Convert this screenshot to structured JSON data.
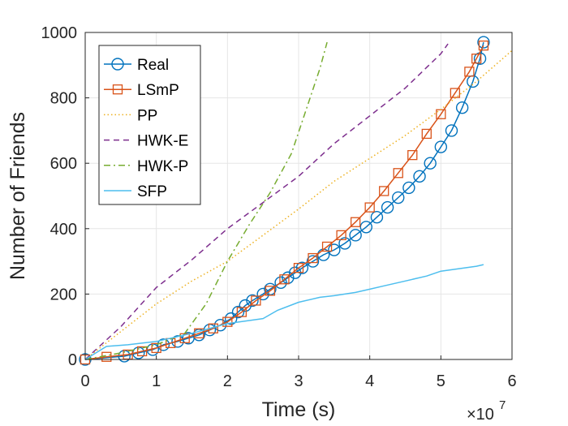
{
  "chart_data": {
    "type": "line",
    "title": "",
    "xlabel": "Time (s)",
    "ylabel": "Number of Friends",
    "x_multiplier_label": "×10",
    "x_multiplier_exponent": "7",
    "xlim": [
      0,
      6
    ],
    "ylim": [
      0,
      1000
    ],
    "xticks": [
      "0",
      "1",
      "2",
      "3",
      "4",
      "5",
      "6"
    ],
    "yticks": [
      "0",
      "200",
      "400",
      "600",
      "800",
      "1000"
    ],
    "grid": true,
    "legend_position": "top-left",
    "series": [
      {
        "name": "Real",
        "color": "#0072bd",
        "style": "solid",
        "marker": "circle",
        "x": [
          0,
          0.55,
          0.75,
          0.95,
          1.1,
          1.3,
          1.45,
          1.6,
          1.75,
          1.9,
          2.05,
          2.15,
          2.25,
          2.35,
          2.5,
          2.6,
          2.75,
          2.85,
          2.95,
          3.05,
          3.2,
          3.35,
          3.5,
          3.65,
          3.8,
          3.95,
          4.1,
          4.25,
          4.4,
          4.55,
          4.7,
          4.85,
          5.0,
          5.15,
          5.3,
          5.45,
          5.55,
          5.6
        ],
        "y": [
          0,
          10,
          20,
          30,
          45,
          55,
          65,
          75,
          90,
          105,
          125,
          145,
          165,
          180,
          200,
          215,
          235,
          250,
          265,
          280,
          300,
          320,
          335,
          355,
          380,
          405,
          435,
          465,
          495,
          525,
          560,
          600,
          650,
          700,
          770,
          850,
          920,
          970
        ]
      },
      {
        "name": "LSmP",
        "color": "#d95319",
        "style": "solid",
        "marker": "square",
        "x": [
          0,
          0.3,
          0.6,
          0.8,
          1.0,
          1.2,
          1.4,
          1.6,
          1.8,
          2.0,
          2.2,
          2.4,
          2.6,
          2.8,
          3.0,
          3.2,
          3.4,
          3.6,
          3.8,
          4.0,
          4.2,
          4.4,
          4.6,
          4.8,
          5.0,
          5.2,
          5.4,
          5.5,
          5.6
        ],
        "y": [
          0,
          8,
          15,
          25,
          35,
          50,
          65,
          80,
          95,
          115,
          145,
          180,
          210,
          245,
          280,
          310,
          345,
          380,
          420,
          465,
          515,
          570,
          625,
          690,
          750,
          815,
          880,
          920,
          960
        ]
      },
      {
        "name": "PP",
        "color": "#edb120",
        "style": "dotted",
        "marker": "none",
        "x": [
          0,
          0.5,
          1.0,
          1.5,
          2.0,
          2.5,
          3.0,
          3.5,
          4.0,
          4.5,
          5.0,
          5.5,
          6.0
        ],
        "y": [
          0,
          85,
          170,
          240,
          300,
          380,
          460,
          545,
          615,
          685,
          765,
          850,
          945
        ]
      },
      {
        "name": "HWK-E",
        "color": "#7e2f8e",
        "style": "dashed",
        "marker": "none",
        "x": [
          0,
          0.5,
          1.0,
          1.5,
          2.0,
          2.5,
          3.0,
          3.5,
          4.0,
          4.5,
          5.0,
          5.1
        ],
        "y": [
          0,
          100,
          220,
          305,
          400,
          480,
          560,
          660,
          745,
          830,
          935,
          965
        ]
      },
      {
        "name": "HWK-P",
        "color": "#77ac30",
        "style": "dashdot",
        "marker": "none",
        "x": [
          0,
          0.5,
          1.0,
          1.4,
          1.7,
          2.0,
          2.3,
          2.6,
          2.9,
          3.1,
          3.3,
          3.4
        ],
        "y": [
          0,
          20,
          45,
          80,
          170,
          300,
          410,
          510,
          630,
          760,
          890,
          970
        ]
      },
      {
        "name": "SFP",
        "color": "#4dbeee",
        "style": "solid",
        "marker": "none",
        "x": [
          0,
          0.3,
          0.6,
          1.0,
          1.5,
          2.0,
          2.5,
          2.7,
          3.0,
          3.3,
          3.5,
          3.8,
          4.0,
          4.2,
          4.5,
          4.8,
          5.0,
          5.5,
          5.6
        ],
        "y": [
          0,
          40,
          45,
          55,
          80,
          110,
          125,
          150,
          175,
          190,
          195,
          205,
          215,
          225,
          240,
          255,
          270,
          285,
          290
        ]
      }
    ]
  }
}
